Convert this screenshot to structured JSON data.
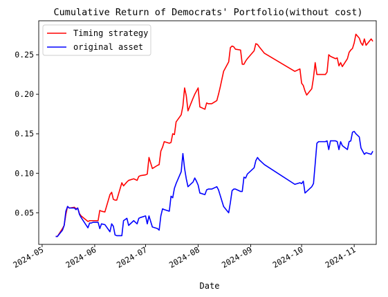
{
  "chart_data": {
    "type": "line",
    "title": "Cumulative Return of Democrats' Portfolio(without cost)",
    "xlabel": "Date",
    "ylabel": "",
    "xlim": [
      "2024-04-29",
      "2024-11-14"
    ],
    "ylim": [
      0.01,
      0.293
    ],
    "x_ticks": [
      "2024-05",
      "2024-06",
      "2024-07",
      "2024-08",
      "2024-09",
      "2024-10",
      "2024-11"
    ],
    "y_ticks": [
      "0.05",
      "0.10",
      "0.15",
      "0.20",
      "0.25"
    ],
    "legend": "top-left",
    "grid": false,
    "series": [
      {
        "name": "Timing strategy",
        "color": "#ff0000",
        "points": [
          [
            "2024-05-09",
            0.02
          ],
          [
            "2024-05-10",
            0.02
          ],
          [
            "2024-05-13",
            0.03
          ],
          [
            "2024-05-14",
            0.034
          ],
          [
            "2024-05-15",
            0.048
          ],
          [
            "2024-05-16",
            0.058
          ],
          [
            "2024-05-17",
            0.056
          ],
          [
            "2024-05-20",
            0.057
          ],
          [
            "2024-05-21",
            0.055
          ],
          [
            "2024-05-22",
            0.056
          ],
          [
            "2024-05-23",
            0.049
          ],
          [
            "2024-05-24",
            0.046
          ],
          [
            "2024-05-28",
            0.039
          ],
          [
            "2024-05-29",
            0.04
          ],
          [
            "2024-05-30",
            0.04
          ],
          [
            "2024-05-31",
            0.04
          ],
          [
            "2024-06-03",
            0.04
          ],
          [
            "2024-06-04",
            0.053
          ],
          [
            "2024-06-05",
            0.052
          ],
          [
            "2024-06-07",
            0.051
          ],
          [
            "2024-06-10",
            0.073
          ],
          [
            "2024-06-11",
            0.076
          ],
          [
            "2024-06-12",
            0.067
          ],
          [
            "2024-06-13",
            0.066
          ],
          [
            "2024-06-14",
            0.066
          ],
          [
            "2024-06-17",
            0.088
          ],
          [
            "2024-06-18",
            0.084
          ],
          [
            "2024-06-20",
            0.089
          ],
          [
            "2024-06-21",
            0.091
          ],
          [
            "2024-06-24",
            0.093
          ],
          [
            "2024-06-25",
            0.092
          ],
          [
            "2024-06-26",
            0.091
          ],
          [
            "2024-06-27",
            0.096
          ],
          [
            "2024-06-28",
            0.097
          ],
          [
            "2024-07-01",
            0.098
          ],
          [
            "2024-07-02",
            0.099
          ],
          [
            "2024-07-03",
            0.12
          ],
          [
            "2024-07-05",
            0.106
          ],
          [
            "2024-07-08",
            0.11
          ],
          [
            "2024-07-09",
            0.111
          ],
          [
            "2024-07-10",
            0.128
          ],
          [
            "2024-07-11",
            0.133
          ],
          [
            "2024-07-12",
            0.14
          ],
          [
            "2024-07-15",
            0.138
          ],
          [
            "2024-07-16",
            0.139
          ],
          [
            "2024-07-17",
            0.15
          ],
          [
            "2024-07-18",
            0.149
          ],
          [
            "2024-07-19",
            0.165
          ],
          [
            "2024-07-22",
            0.174
          ],
          [
            "2024-07-23",
            0.185
          ],
          [
            "2024-07-24",
            0.208
          ],
          [
            "2024-07-25",
            0.198
          ],
          [
            "2024-07-26",
            0.179
          ],
          [
            "2024-07-29",
            0.195
          ],
          [
            "2024-07-30",
            0.2
          ],
          [
            "2024-07-31",
            0.204
          ],
          [
            "2024-08-01",
            0.208
          ],
          [
            "2024-08-02",
            0.184
          ],
          [
            "2024-08-05",
            0.181
          ],
          [
            "2024-08-06",
            0.189
          ],
          [
            "2024-08-07",
            0.188
          ],
          [
            "2024-08-08",
            0.188
          ],
          [
            "2024-08-09",
            0.188
          ],
          [
            "2024-08-12",
            0.192
          ],
          [
            "2024-08-13",
            0.2
          ],
          [
            "2024-08-14",
            0.209
          ],
          [
            "2024-08-15",
            0.219
          ],
          [
            "2024-08-16",
            0.229
          ],
          [
            "2024-08-19",
            0.241
          ],
          [
            "2024-08-20",
            0.259
          ],
          [
            "2024-08-21",
            0.261
          ],
          [
            "2024-08-22",
            0.26
          ],
          [
            "2024-08-23",
            0.257
          ],
          [
            "2024-08-26",
            0.256
          ],
          [
            "2024-08-27",
            0.238
          ],
          [
            "2024-08-28",
            0.238
          ],
          [
            "2024-08-29",
            0.242
          ],
          [
            "2024-08-30",
            0.245
          ],
          [
            "2024-09-03",
            0.255
          ],
          [
            "2024-09-04",
            0.264
          ],
          [
            "2024-09-05",
            0.263
          ],
          [
            "2024-09-06",
            0.26
          ],
          [
            "2024-09-09",
            0.252
          ],
          [
            "2024-09-27",
            0.229
          ],
          [
            "2024-09-30",
            0.232
          ],
          [
            "2024-10-01",
            0.214
          ],
          [
            "2024-10-02",
            0.211
          ],
          [
            "2024-10-03",
            0.204
          ],
          [
            "2024-10-04",
            0.199
          ],
          [
            "2024-10-07",
            0.207
          ],
          [
            "2024-10-08",
            0.221
          ],
          [
            "2024-10-09",
            0.24
          ],
          [
            "2024-10-10",
            0.225
          ],
          [
            "2024-10-11",
            0.225
          ],
          [
            "2024-10-14",
            0.225
          ],
          [
            "2024-10-15",
            0.225
          ],
          [
            "2024-10-16",
            0.228
          ],
          [
            "2024-10-17",
            0.25
          ],
          [
            "2024-10-18",
            0.248
          ],
          [
            "2024-10-21",
            0.245
          ],
          [
            "2024-10-22",
            0.246
          ],
          [
            "2024-10-23",
            0.236
          ],
          [
            "2024-10-24",
            0.24
          ],
          [
            "2024-10-25",
            0.235
          ],
          [
            "2024-10-28",
            0.245
          ],
          [
            "2024-10-29",
            0.253
          ],
          [
            "2024-10-30",
            0.256
          ],
          [
            "2024-10-31",
            0.258
          ],
          [
            "2024-11-01",
            0.265
          ],
          [
            "2024-11-02",
            0.276
          ],
          [
            "2024-11-04",
            0.271
          ],
          [
            "2024-11-05",
            0.265
          ],
          [
            "2024-11-06",
            0.262
          ],
          [
            "2024-11-07",
            0.27
          ],
          [
            "2024-11-08",
            0.262
          ],
          [
            "2024-11-11",
            0.27
          ],
          [
            "2024-11-12",
            0.267
          ]
        ]
      },
      {
        "name": "original asset",
        "color": "#0000ff",
        "points": [
          [
            "2024-05-09",
            0.02
          ],
          [
            "2024-05-10",
            0.02
          ],
          [
            "2024-05-13",
            0.028
          ],
          [
            "2024-05-14",
            0.034
          ],
          [
            "2024-05-15",
            0.052
          ],
          [
            "2024-05-16",
            0.058
          ],
          [
            "2024-05-17",
            0.056
          ],
          [
            "2024-05-20",
            0.056
          ],
          [
            "2024-05-21",
            0.054
          ],
          [
            "2024-05-22",
            0.056
          ],
          [
            "2024-05-23",
            0.048
          ],
          [
            "2024-05-24",
            0.044
          ],
          [
            "2024-05-28",
            0.031
          ],
          [
            "2024-05-29",
            0.037
          ],
          [
            "2024-05-30",
            0.037
          ],
          [
            "2024-05-31",
            0.038
          ],
          [
            "2024-06-03",
            0.038
          ],
          [
            "2024-06-04",
            0.03
          ],
          [
            "2024-06-05",
            0.036
          ],
          [
            "2024-06-07",
            0.035
          ],
          [
            "2024-06-10",
            0.026
          ],
          [
            "2024-06-11",
            0.036
          ],
          [
            "2024-06-12",
            0.033
          ],
          [
            "2024-06-13",
            0.022
          ],
          [
            "2024-06-14",
            0.021
          ],
          [
            "2024-06-17",
            0.021
          ],
          [
            "2024-06-18",
            0.04
          ],
          [
            "2024-06-20",
            0.043
          ],
          [
            "2024-06-21",
            0.034
          ],
          [
            "2024-06-24",
            0.04
          ],
          [
            "2024-06-25",
            0.038
          ],
          [
            "2024-06-26",
            0.036
          ],
          [
            "2024-06-27",
            0.043
          ],
          [
            "2024-06-28",
            0.044
          ],
          [
            "2024-07-01",
            0.046
          ],
          [
            "2024-07-02",
            0.036
          ],
          [
            "2024-07-03",
            0.046
          ],
          [
            "2024-07-05",
            0.032
          ],
          [
            "2024-07-08",
            0.03
          ],
          [
            "2024-07-09",
            0.028
          ],
          [
            "2024-07-10",
            0.046
          ],
          [
            "2024-07-11",
            0.055
          ],
          [
            "2024-07-12",
            0.054
          ],
          [
            "2024-07-15",
            0.052
          ],
          [
            "2024-07-16",
            0.071
          ],
          [
            "2024-07-17",
            0.069
          ],
          [
            "2024-07-18",
            0.081
          ],
          [
            "2024-07-19",
            0.087
          ],
          [
            "2024-07-22",
            0.102
          ],
          [
            "2024-07-23",
            0.125
          ],
          [
            "2024-07-24",
            0.106
          ],
          [
            "2024-07-25",
            0.093
          ],
          [
            "2024-07-26",
            0.083
          ],
          [
            "2024-07-29",
            0.089
          ],
          [
            "2024-07-30",
            0.094
          ],
          [
            "2024-07-31",
            0.09
          ],
          [
            "2024-08-01",
            0.085
          ],
          [
            "2024-08-02",
            0.075
          ],
          [
            "2024-08-05",
            0.073
          ],
          [
            "2024-08-06",
            0.079
          ],
          [
            "2024-08-07",
            0.08
          ],
          [
            "2024-08-08",
            0.08
          ],
          [
            "2024-08-09",
            0.08
          ],
          [
            "2024-08-12",
            0.083
          ],
          [
            "2024-08-13",
            0.079
          ],
          [
            "2024-08-14",
            0.072
          ],
          [
            "2024-08-15",
            0.065
          ],
          [
            "2024-08-16",
            0.058
          ],
          [
            "2024-08-19",
            0.05
          ],
          [
            "2024-08-20",
            0.063
          ],
          [
            "2024-08-21",
            0.078
          ],
          [
            "2024-08-22",
            0.08
          ],
          [
            "2024-08-23",
            0.08
          ],
          [
            "2024-08-26",
            0.077
          ],
          [
            "2024-08-27",
            0.077
          ],
          [
            "2024-08-28",
            0.095
          ],
          [
            "2024-08-29",
            0.094
          ],
          [
            "2024-08-30",
            0.099
          ],
          [
            "2024-09-03",
            0.107
          ],
          [
            "2024-09-04",
            0.116
          ],
          [
            "2024-09-05",
            0.12
          ],
          [
            "2024-09-06",
            0.117
          ],
          [
            "2024-09-09",
            0.111
          ],
          [
            "2024-09-27",
            0.086
          ],
          [
            "2024-09-30",
            0.088
          ],
          [
            "2024-10-01",
            0.087
          ],
          [
            "2024-10-02",
            0.09
          ],
          [
            "2024-10-03",
            0.075
          ],
          [
            "2024-10-04",
            0.077
          ],
          [
            "2024-10-07",
            0.083
          ],
          [
            "2024-10-08",
            0.087
          ],
          [
            "2024-10-09",
            0.112
          ],
          [
            "2024-10-10",
            0.138
          ],
          [
            "2024-10-11",
            0.14
          ],
          [
            "2024-10-14",
            0.14
          ],
          [
            "2024-10-15",
            0.14
          ],
          [
            "2024-10-16",
            0.141
          ],
          [
            "2024-10-17",
            0.13
          ],
          [
            "2024-10-18",
            0.141
          ],
          [
            "2024-10-21",
            0.141
          ],
          [
            "2024-10-22",
            0.14
          ],
          [
            "2024-10-23",
            0.13
          ],
          [
            "2024-10-24",
            0.14
          ],
          [
            "2024-10-25",
            0.135
          ],
          [
            "2024-10-28",
            0.13
          ],
          [
            "2024-10-29",
            0.14
          ],
          [
            "2024-10-30",
            0.141
          ],
          [
            "2024-10-31",
            0.152
          ],
          [
            "2024-11-01",
            0.153
          ],
          [
            "2024-11-02",
            0.15
          ],
          [
            "2024-11-04",
            0.146
          ],
          [
            "2024-11-05",
            0.132
          ],
          [
            "2024-11-06",
            0.128
          ],
          [
            "2024-11-07",
            0.124
          ],
          [
            "2024-11-08",
            0.126
          ],
          [
            "2024-11-11",
            0.124
          ],
          [
            "2024-11-12",
            0.128
          ]
        ]
      }
    ]
  }
}
